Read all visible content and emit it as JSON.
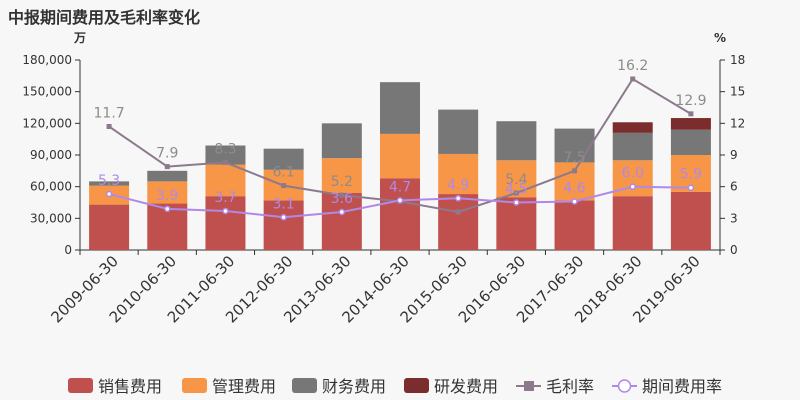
{
  "title": "中报期间费用及毛利率变化",
  "chart_data": {
    "type": "bar",
    "stacked": true,
    "categories": [
      "2009-06-30",
      "2010-06-30",
      "2011-06-30",
      "2012-06-30",
      "2013-06-30",
      "2014-06-30",
      "2015-06-30",
      "2016-06-30",
      "2017-06-30",
      "2018-06-30",
      "2019-06-30"
    ],
    "left_axis": {
      "unit": "万",
      "min": 0,
      "max": 180000,
      "ticks": [
        "0",
        "30,000",
        "60,000",
        "90,000",
        "120,000",
        "150,000",
        "180,000"
      ]
    },
    "right_axis": {
      "unit": "%",
      "min": 0,
      "max": 18,
      "ticks": [
        "0",
        "3",
        "6",
        "9",
        "12",
        "15",
        "18"
      ]
    },
    "series": [
      {
        "name": "销售费用",
        "color": "#c0504d",
        "values": [
          43000,
          44000,
          51000,
          47000,
          54000,
          68000,
          53000,
          50000,
          47000,
          51000,
          55000
        ]
      },
      {
        "name": "管理费用",
        "color": "#f79646",
        "values": [
          18000,
          21000,
          30000,
          29000,
          33000,
          42000,
          38000,
          35000,
          36000,
          34000,
          35000
        ]
      },
      {
        "name": "财务费用",
        "color": "#777777",
        "values": [
          4000,
          10000,
          18000,
          20000,
          33000,
          49000,
          42000,
          37000,
          32000,
          26000,
          24000
        ]
      },
      {
        "name": "研发费用",
        "color": "#7b2c2c",
        "values": [
          0,
          0,
          0,
          0,
          0,
          0,
          0,
          0,
          0,
          10000,
          11000
        ]
      }
    ],
    "lines": [
      {
        "name": "毛利率",
        "color": "#8c7a8c",
        "marker": "square",
        "axis": "right",
        "values": [
          11.7,
          7.9,
          8.3,
          6.1,
          5.2,
          4.6,
          3.6,
          5.4,
          7.5,
          16.2,
          12.9
        ],
        "labels": [
          "11.7",
          "7.9",
          "8.3",
          "6.1",
          "5.2",
          "",
          "",
          "5.4",
          "7.5",
          "16.2",
          "12.9"
        ]
      },
      {
        "name": "期间费用率",
        "color": "#b089e8",
        "marker": "circle",
        "axis": "right",
        "values": [
          5.3,
          3.9,
          3.7,
          3.1,
          3.6,
          4.7,
          4.9,
          4.5,
          4.6,
          6.0,
          5.9
        ],
        "labels": [
          "5.3",
          "3.9",
          "3.7",
          "3.1",
          "3.6",
          "4.7",
          "4.9",
          "4.5",
          "4.6",
          "6.0",
          "5.9"
        ]
      }
    ]
  }
}
